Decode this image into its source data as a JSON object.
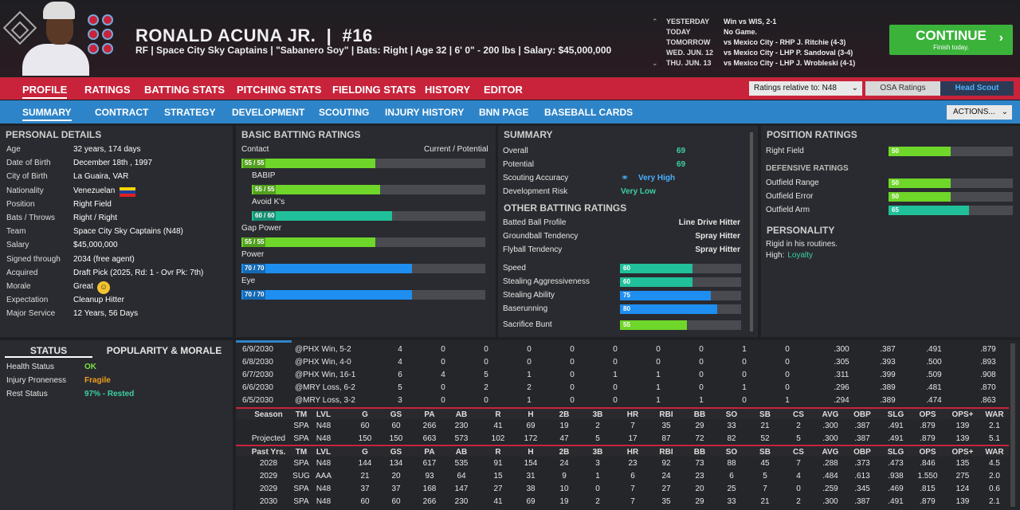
{
  "player": {
    "name": "RONALD ACUNA JR.",
    "number": "#16",
    "info": "RF | Space City Sky Captains | \"Sabanero Soy\" | Bats: Right | Age 32 | 6' 0\" - 200 lbs | Salary: $45,000,000"
  },
  "schedule": [
    {
      "d": "YESTERDAY",
      "g": "Win vs WIS, 2-1"
    },
    {
      "d": "TODAY",
      "g": "No Game."
    },
    {
      "d": "TOMORROW",
      "g": "vs Mexico City - RHP J. Ritchie (4-3)"
    },
    {
      "d": "WED. JUN. 12",
      "g": "vs Mexico City - LHP P. Sandoval (3-4)"
    },
    {
      "d": "THU. JUN. 13",
      "g": "vs Mexico City - LHP J. Wrobleski (4-1)"
    }
  ],
  "continue": {
    "label": "CONTINUE",
    "sub": "Finish today."
  },
  "nav1": [
    "PROFILE",
    "RATINGS",
    "BATTING STATS",
    "PITCHING STATS",
    "FIELDING STATS",
    "HISTORY",
    "EDITOR"
  ],
  "ratings_rel": "Ratings relative to: N48",
  "osa": "OSA Ratings",
  "scout": "Head Scout",
  "nav2": [
    "SUMMARY",
    "CONTRACT",
    "STRATEGY",
    "DEVELOPMENT",
    "SCOUTING",
    "INJURY HISTORY",
    "BNN PAGE",
    "BASEBALL CARDS"
  ],
  "actions": "ACTIONS...",
  "personal": {
    "title": "PERSONAL DETAILS",
    "rows": [
      [
        "Age",
        "32 years, 174 days"
      ],
      [
        "Date of Birth",
        "December 18th , 1997"
      ],
      [
        "City of Birth",
        "La Guaira, VAR"
      ],
      [
        "Nationality",
        "Venezuelan"
      ],
      [
        "Position",
        "Right Field"
      ],
      [
        "Bats / Throws",
        "Right / Right"
      ],
      [
        "Team",
        "Space City Sky Captains (N48)"
      ],
      [
        "Salary",
        "$45,000,000"
      ],
      [
        "Signed through",
        "2034 (free agent)"
      ],
      [
        "Acquired",
        "Draft Pick (2025, Rd: 1 - Ovr Pk: 7th)"
      ],
      [
        "Morale",
        "Great"
      ],
      [
        "Expectation",
        "Cleanup Hitter"
      ],
      [
        "Major Service",
        "12 Years, 56 Days"
      ]
    ]
  },
  "batting": {
    "title": "BASIC BATTING RATINGS",
    "cp": "Current / Potential",
    "items": [
      {
        "name": "Contact",
        "lbl": "55 / 55",
        "v": 55,
        "c": "#6fd62a"
      },
      {
        "name": "BABIP",
        "lbl": "55 / 55",
        "v": 55,
        "c": "#6fd62a"
      },
      {
        "name": "Avoid K's",
        "lbl": "60 / 60",
        "v": 60,
        "c": "#20c09a"
      },
      {
        "name": "Gap Power",
        "lbl": "55 / 55",
        "v": 55,
        "c": "#6fd62a"
      },
      {
        "name": "Power",
        "lbl": "70 / 70",
        "v": 70,
        "c": "#1e8ef0"
      },
      {
        "name": "Eye",
        "lbl": "70 / 70",
        "v": 70,
        "c": "#1e8ef0"
      }
    ]
  },
  "summary": {
    "title": "SUMMARY",
    "overall_k": "Overall",
    "overall": "69",
    "potential_k": "Potential",
    "potential": "69",
    "scout_k": "Scouting Accuracy",
    "scout_v": "Very High",
    "dev_k": "Development Risk",
    "dev_v": "Very Low",
    "other_title": "OTHER BATTING RATINGS",
    "other": [
      [
        "Batted Ball Profile",
        "Line Drive Hitter"
      ],
      [
        "Groundball Tendency",
        "Spray Hitter"
      ],
      [
        "Flyball Tendency",
        "Spray Hitter"
      ]
    ],
    "bars": [
      {
        "n": "Speed",
        "v": 60,
        "c": "#20c09a"
      },
      {
        "n": "Stealing Aggressiveness",
        "v": 60,
        "c": "#20c09a"
      },
      {
        "n": "Stealing Ability",
        "v": 75,
        "c": "#1e8ef0"
      },
      {
        "n": "Baserunning",
        "v": 80,
        "c": "#1e8ef0"
      },
      {
        "n": "Sacrifice Bunt",
        "v": 55,
        "c": "#6fd62a"
      }
    ]
  },
  "position": {
    "title": "POSITION RATINGS",
    "rf": "Right Field",
    "rf_v": 50,
    "def_title": "DEFENSIVE RATINGS",
    "def": [
      {
        "n": "Outfield Range",
        "v": 50,
        "c": "#6fd62a"
      },
      {
        "n": "Outfield Error",
        "v": 50,
        "c": "#6fd62a"
      },
      {
        "n": "Outfield Arm",
        "v": 65,
        "c": "#20c09a"
      }
    ],
    "pers_title": "PERSONALITY",
    "pers1": "Rigid in his routines.",
    "pers2_k": "High:",
    "pers2_v": "Loyalty"
  },
  "status": {
    "tab1": "STATUS",
    "tab2": "POPULARITY & MORALE",
    "rows": [
      [
        "Health Status",
        "OK"
      ],
      [
        "Injury Proneness",
        "Fragile"
      ],
      [
        "Rest Status",
        "97% - Rested"
      ]
    ]
  },
  "games": [
    [
      "6/9/2030",
      "@PHX Win, 5-2",
      "4",
      "0",
      "0",
      "0",
      "0",
      "0",
      "0",
      "0",
      "1",
      "0",
      ".300",
      ".387",
      ".491",
      ".879"
    ],
    [
      "6/8/2030",
      "@PHX Win, 4-0",
      "4",
      "0",
      "0",
      "0",
      "0",
      "0",
      "0",
      "0",
      "0",
      "0",
      ".305",
      ".393",
      ".500",
      ".893"
    ],
    [
      "6/7/2030",
      "@PHX Win, 16-1",
      "6",
      "4",
      "5",
      "1",
      "0",
      "1",
      "1",
      "0",
      "0",
      "0",
      ".311",
      ".399",
      ".509",
      ".908"
    ],
    [
      "6/6/2030",
      "@MRY Loss, 6-2",
      "5",
      "0",
      "2",
      "2",
      "0",
      "0",
      "1",
      "0",
      "1",
      "0",
      ".296",
      ".389",
      ".481",
      ".870"
    ],
    [
      "6/5/2030",
      "@MRY Loss, 3-2",
      "3",
      "0",
      "0",
      "1",
      "0",
      "0",
      "1",
      "1",
      "0",
      "1",
      ".294",
      ".389",
      ".474",
      ".863"
    ]
  ],
  "season_hdr": [
    "Season",
    "TM",
    "LVL",
    "G",
    "GS",
    "PA",
    "AB",
    "R",
    "H",
    "2B",
    "3B",
    "HR",
    "RBI",
    "BB",
    "SO",
    "SB",
    "CS",
    "AVG",
    "OBP",
    "SLG",
    "OPS",
    "OPS+",
    "WAR"
  ],
  "season_rows": [
    [
      "",
      "SPA",
      "N48",
      "60",
      "60",
      "266",
      "230",
      "41",
      "69",
      "19",
      "2",
      "7",
      "35",
      "29",
      "33",
      "21",
      "2",
      ".300",
      ".387",
      ".491",
      ".879",
      "139",
      "2.1"
    ],
    [
      "Projected",
      "SPA",
      "N48",
      "150",
      "150",
      "663",
      "573",
      "102",
      "172",
      "47",
      "5",
      "17",
      "87",
      "72",
      "82",
      "52",
      "5",
      ".300",
      ".387",
      ".491",
      ".879",
      "139",
      "5.1"
    ]
  ],
  "past_hdr": [
    "Past Yrs.",
    "TM",
    "LVL",
    "G",
    "GS",
    "PA",
    "AB",
    "R",
    "H",
    "2B",
    "3B",
    "HR",
    "RBI",
    "BB",
    "SO",
    "SB",
    "CS",
    "AVG",
    "OBP",
    "SLG",
    "OPS",
    "OPS+",
    "WAR"
  ],
  "past_rows": [
    [
      "2028",
      "SPA",
      "N48",
      "144",
      "134",
      "617",
      "535",
      "91",
      "154",
      "24",
      "3",
      "23",
      "92",
      "73",
      "88",
      "45",
      "7",
      ".288",
      ".373",
      ".473",
      ".846",
      "135",
      "4.5"
    ],
    [
      "2029",
      "SUG",
      "AAA",
      "21",
      "20",
      "93",
      "64",
      "15",
      "31",
      "9",
      "1",
      "6",
      "24",
      "23",
      "6",
      "5",
      "4",
      ".484",
      ".613",
      ".938",
      "1.550",
      "275",
      "2.0"
    ],
    [
      "2029",
      "SPA",
      "N48",
      "37",
      "37",
      "168",
      "147",
      "27",
      "38",
      "10",
      "0",
      "7",
      "27",
      "20",
      "25",
      "7",
      "0",
      ".259",
      ".345",
      ".469",
      ".815",
      "124",
      "0.6"
    ],
    [
      "2030",
      "SPA",
      "N48",
      "60",
      "60",
      "266",
      "230",
      "41",
      "69",
      "19",
      "2",
      "7",
      "35",
      "29",
      "33",
      "21",
      "2",
      ".300",
      ".387",
      ".491",
      ".879",
      "139",
      "2.1"
    ]
  ]
}
